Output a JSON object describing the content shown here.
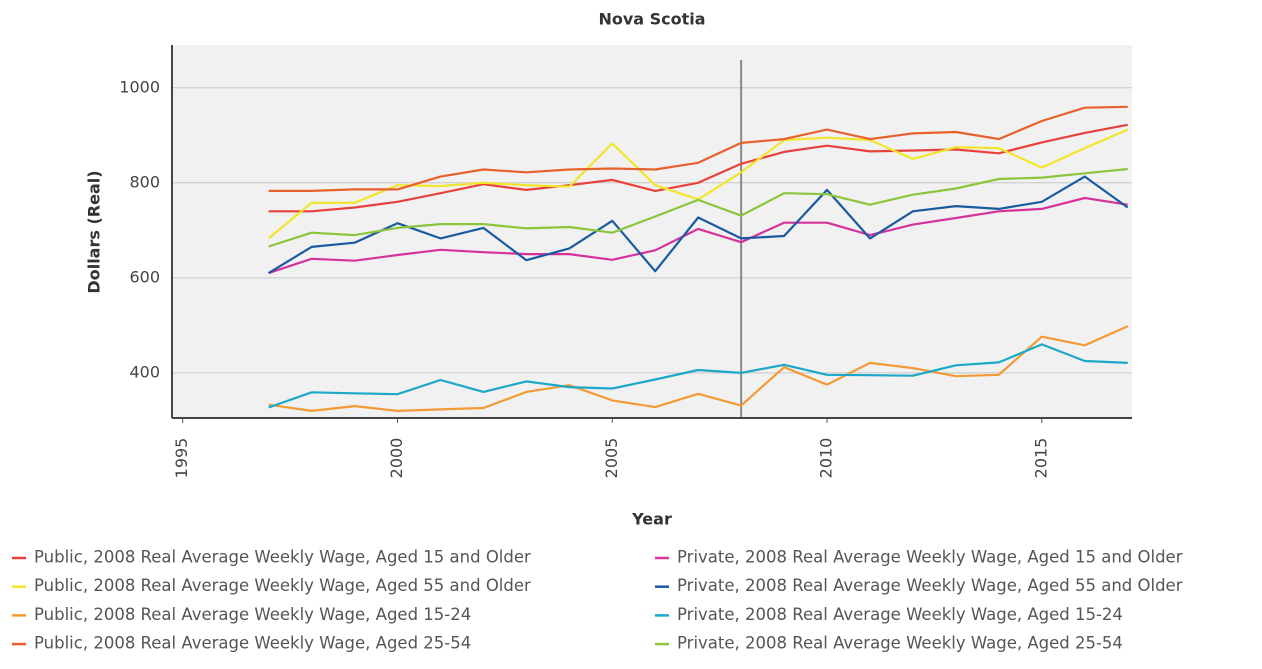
{
  "chart_data": {
    "type": "line",
    "title": "Nova Scotia",
    "xlabel": "Year",
    "ylabel": "Dollars (Real)",
    "x": [
      1997,
      1998,
      1999,
      2000,
      2001,
      2002,
      2003,
      2004,
      2005,
      2006,
      2007,
      2008,
      2009,
      2010,
      2011,
      2012,
      2013,
      2014,
      2015,
      2016,
      2017
    ],
    "xlim": [
      1994.75,
      2017.1
    ],
    "xticks": [
      1995,
      2000,
      2005,
      2010,
      2015
    ],
    "ylim": [
      305,
      1090
    ],
    "yticks": [
      400,
      600,
      800,
      1000
    ],
    "grid": true,
    "reference_line_x": 2008,
    "series": [
      {
        "name": "Public, 2008 Real Average Weekly Wage, Aged 15 and Older",
        "color": "#e8413c",
        "values": [
          740,
          740,
          748,
          760,
          778,
          797,
          785,
          795,
          806,
          783,
          800,
          840,
          865,
          878,
          866,
          868,
          870,
          862,
          885,
          905,
          922
        ]
      },
      {
        "name": "Public, 2008 Real Average Weekly Wage, Aged 55 and Older",
        "color": "#f2e52a",
        "values": [
          683,
          758,
          758,
          795,
          793,
          800,
          795,
          792,
          883,
          795,
          765,
          822,
          890,
          895,
          890,
          850,
          875,
          873,
          832,
          873,
          912
        ]
      },
      {
        "name": "Public, 2008 Real Average Weekly Wage, Aged 15-24",
        "color": "#f39a34",
        "values": [
          333,
          320,
          330,
          320,
          323,
          326,
          360,
          374,
          342,
          328,
          356,
          331,
          412,
          375,
          421,
          410,
          393,
          396,
          476,
          458,
          498
        ]
      },
      {
        "name": "Public, 2008 Real Average Weekly Wage, Aged 25-54",
        "color": "#e8602c",
        "values": [
          783,
          783,
          786,
          786,
          813,
          828,
          822,
          828,
          830,
          828,
          842,
          884,
          892,
          912,
          892,
          904,
          907,
          892,
          930,
          958,
          960
        ]
      },
      {
        "name": "Private, 2008 Real Average Weekly Wage, Aged 15 and Older",
        "color": "#d6339a",
        "values": [
          610,
          640,
          636,
          648,
          659,
          654,
          650,
          650,
          638,
          658,
          703,
          675,
          716,
          716,
          690,
          712,
          726,
          740,
          745,
          768,
          754
        ]
      },
      {
        "name": "Private, 2008 Real Average Weekly Wage, Aged 55 and Older",
        "color": "#1a5aa0",
        "values": [
          610,
          665,
          674,
          715,
          683,
          705,
          637,
          662,
          720,
          614,
          727,
          683,
          688,
          785,
          683,
          740,
          751,
          745,
          760,
          813,
          748
        ]
      },
      {
        "name": "Private, 2008 Real Average Weekly Wage, Aged 15-24",
        "color": "#1ca8c8",
        "values": [
          327,
          359,
          357,
          355,
          385,
          360,
          382,
          370,
          367,
          386,
          406,
          400,
          417,
          396,
          395,
          394,
          416,
          422,
          460,
          425,
          421
        ]
      },
      {
        "name": "Private, 2008 Real Average Weekly Wage, Aged 25-54",
        "color": "#8cc43c",
        "values": [
          666,
          695,
          690,
          705,
          713,
          713,
          704,
          707,
          695,
          729,
          764,
          731,
          778,
          776,
          754,
          775,
          788,
          808,
          811,
          820,
          829
        ]
      }
    ]
  }
}
